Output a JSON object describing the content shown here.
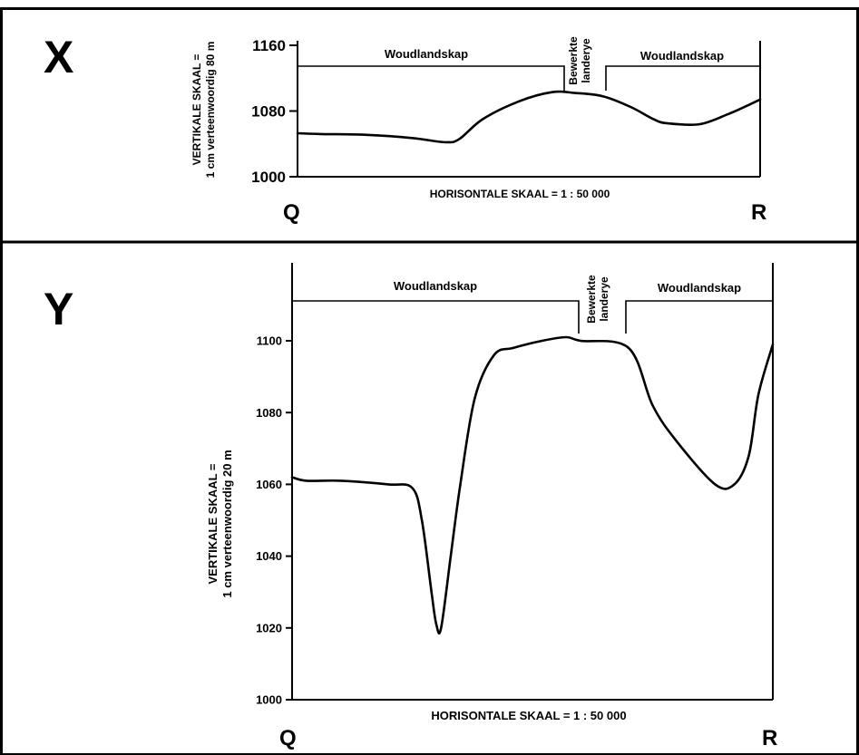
{
  "panel_x": {
    "letter": "X",
    "start_point": "Q",
    "end_point": "R",
    "vertical_scale_line1": "VERTIKALE SKAAL =",
    "vertical_scale_line2": "1 cm verteenwoordig 80 m",
    "horizontal_scale": "HORISONTALE SKAAL = 1 : 50 000",
    "land_use": {
      "left": "Woudlandskap",
      "middle_line1": "Bewerkte",
      "middle_line2": "landerye",
      "right": "Woudlandskap"
    }
  },
  "panel_y": {
    "letter": "Y",
    "start_point": "Q",
    "end_point": "R",
    "vertical_scale_line1": "VERTIKALE SKAAL =",
    "vertical_scale_line2": "1 cm verteenwoordig 20 m",
    "horizontal_scale": "HORISONTALE SKAAL = 1 : 50 000",
    "land_use": {
      "left": "Woudlandskap",
      "middle_line1": "Bewerkte",
      "middle_line2": "landerye",
      "right": "Woudlandskap"
    }
  },
  "chart_data": [
    {
      "type": "line",
      "y_ticks": [
        "1160",
        "1080",
        "1000"
      ],
      "ylim": [
        1000,
        1160
      ],
      "x": [
        0,
        0.05,
        0.15,
        0.25,
        0.32,
        0.35,
        0.4,
        0.48,
        0.55,
        0.6,
        0.66,
        0.72,
        0.77,
        0.8,
        0.87,
        0.93,
        0.97,
        1.0
      ],
      "y": [
        1053,
        1052,
        1051,
        1047,
        1042,
        1046,
        1070,
        1092,
        1103,
        1102,
        1098,
        1085,
        1070,
        1065,
        1064,
        1076,
        1086,
        1094
      ]
    },
    {
      "type": "line",
      "y_ticks": [
        "1100",
        "1080",
        "1060",
        "1040",
        "1020",
        "1000"
      ],
      "ylim": [
        1000,
        1120
      ],
      "x": [
        0,
        0.03,
        0.1,
        0.2,
        0.25,
        0.27,
        0.29,
        0.3,
        0.31,
        0.33,
        0.35,
        0.38,
        0.42,
        0.46,
        0.52,
        0.57,
        0.6,
        0.7,
        0.75,
        0.8,
        0.88,
        0.92,
        0.95,
        0.97,
        1.0
      ],
      "y": [
        1062,
        1061,
        1061,
        1060,
        1059,
        1050,
        1030,
        1021,
        1020,
        1040,
        1060,
        1084,
        1096,
        1098,
        1100,
        1101,
        1100,
        1098,
        1082,
        1072,
        1060,
        1060,
        1068,
        1085,
        1099
      ]
    }
  ]
}
